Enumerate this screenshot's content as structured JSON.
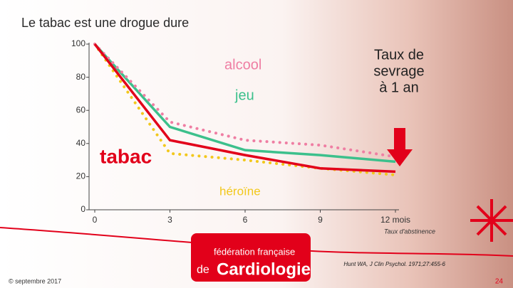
{
  "chart_data": {
    "type": "line",
    "title": "Le tabac est une drogue dure",
    "x": [
      0,
      3,
      6,
      9,
      12
    ],
    "xlim": [
      0,
      12
    ],
    "xticks": [
      0,
      3,
      6,
      9,
      {
        "value": 12,
        "label": "12 mois"
      }
    ],
    "x_label": "Taux d'abstinence",
    "ylim": [
      0,
      100
    ],
    "yticks": [
      0,
      20,
      40,
      60,
      80,
      100
    ],
    "series": [
      {
        "name": "tabac",
        "color": "#e2001a",
        "style": "solid",
        "values": [
          100,
          42,
          33,
          25,
          23
        ]
      },
      {
        "name": "alcool",
        "color": "#ef7ea3",
        "style": "dotted",
        "values": [
          100,
          53,
          42,
          39,
          32
        ]
      },
      {
        "name": "jeu",
        "color": "#3cc08c",
        "style": "solid",
        "values": [
          100,
          50,
          36,
          33,
          29
        ]
      },
      {
        "name": "héroïne",
        "color": "#f2c81c",
        "style": "dotted",
        "values": [
          100,
          34,
          30,
          25,
          21
        ]
      }
    ],
    "annotation": [
      "Taux de",
      "sevrage",
      "à 1 an"
    ]
  },
  "slide": {
    "source": "Hunt WA, J Clin Psychol. 1971;27:455-6",
    "date": "© septembre 2017",
    "page_number": 24,
    "logo": [
      "fédération française",
      "de",
      "Cardiologie"
    ]
  }
}
